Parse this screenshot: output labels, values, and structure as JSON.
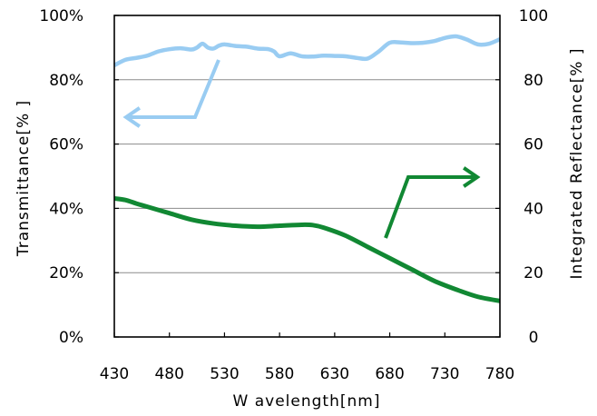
{
  "chart_data": {
    "type": "line",
    "title": "",
    "xlabel": "W avelength[nm]",
    "ylabel_left": "Transmittance[% ]",
    "ylabel_right": "Integrated Reflectance[% ]",
    "xlim": [
      430,
      780
    ],
    "ylim_left": [
      0,
      100
    ],
    "ylim_right": [
      0,
      100
    ],
    "grid": "horizontal",
    "x_ticks": [
      "430",
      "480",
      "530",
      "580",
      "630",
      "680",
      "730",
      "780"
    ],
    "y_ticks_left": [
      "0%",
      "20%",
      "40%",
      "60%",
      "80%",
      "100%"
    ],
    "y_ticks_right": [
      "0",
      "20",
      "40",
      "60",
      "80",
      "100"
    ],
    "series": [
      {
        "axis": "left",
        "color": "#99ccf2",
        "x": [
          430,
          440,
          450,
          460,
          470,
          480,
          490,
          500,
          505,
          510,
          515,
          520,
          525,
          530,
          540,
          550,
          560,
          570,
          575,
          580,
          590,
          600,
          610,
          620,
          630,
          640,
          650,
          660,
          670,
          680,
          690,
          700,
          710,
          720,
          730,
          740,
          750,
          760,
          770,
          780
        ],
        "y": [
          84.5,
          86.2,
          86.8,
          87.5,
          88.8,
          89.5,
          89.8,
          89.4,
          90.0,
          91.2,
          90.0,
          89.7,
          90.6,
          91.0,
          90.5,
          90.3,
          89.7,
          89.5,
          88.8,
          87.3,
          88.2,
          87.3,
          87.2,
          87.5,
          87.4,
          87.3,
          86.8,
          86.6,
          88.8,
          91.5,
          91.6,
          91.4,
          91.5,
          92.0,
          93.0,
          93.5,
          92.5,
          91.0,
          91.2,
          92.6
        ]
      },
      {
        "axis": "right",
        "color": "#118833",
        "x": [
          430,
          440,
          450,
          460,
          480,
          500,
          520,
          540,
          560,
          580,
          600,
          610,
          620,
          640,
          660,
          680,
          700,
          720,
          740,
          760,
          780
        ],
        "y": [
          43.1,
          42.6,
          41.5,
          40.5,
          38.5,
          36.5,
          35.3,
          34.6,
          34.3,
          34.6,
          34.9,
          34.8,
          34.0,
          31.5,
          28.0,
          24.5,
          21.0,
          17.5,
          14.8,
          12.5,
          11.2
        ]
      }
    ],
    "annotations": [
      {
        "type": "arrow",
        "points": [
          [
            241,
            66
          ],
          [
            215,
            129
          ],
          [
            139,
            129
          ]
        ],
        "color": "#99ccf2"
      },
      {
        "type": "arrow",
        "points": [
          [
            425,
            262
          ],
          [
            450,
            195
          ],
          [
            526,
            195
          ]
        ],
        "color": "#118833"
      }
    ]
  }
}
